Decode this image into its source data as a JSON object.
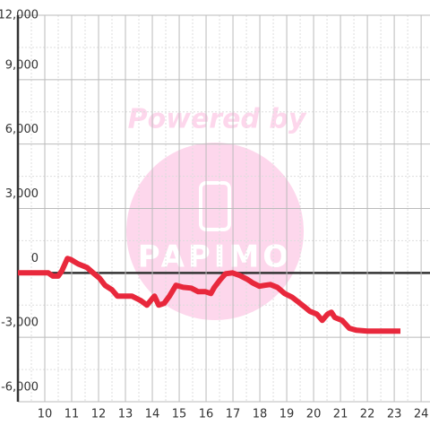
{
  "chart_data": {
    "type": "line",
    "watermark": {
      "line1": "Powered by",
      "line2": "PAPIMO"
    },
    "x": [
      9,
      10.13,
      10.3,
      10.5,
      10.63,
      10.84,
      10.97,
      11.24,
      11.57,
      11.8,
      12.04,
      12.24,
      12.5,
      12.7,
      13.24,
      13.57,
      13.8,
      14.08,
      14.24,
      14.44,
      14.64,
      14.88,
      15.15,
      15.45,
      15.71,
      15.98,
      16.18,
      16.31,
      16.52,
      16.72,
      16.98,
      17.25,
      17.52,
      17.72,
      17.98,
      18.18,
      18.39,
      18.65,
      18.92,
      19.19,
      19.45,
      19.66,
      19.86,
      20.12,
      20.32,
      20.52,
      20.66,
      20.79,
      21.06,
      21.33,
      21.6,
      22.0,
      23.23
    ],
    "series": [
      {
        "color": "#e8283c",
        "values": [
          0,
          0,
          -150,
          -150,
          80,
          670,
          620,
          420,
          250,
          0,
          -250,
          -580,
          -790,
          -1080,
          -1080,
          -1290,
          -1500,
          -1080,
          -1500,
          -1420,
          -1080,
          -580,
          -670,
          -710,
          -875,
          -875,
          -960,
          -670,
          -330,
          -40,
          0,
          -120,
          -290,
          -460,
          -620,
          -580,
          -540,
          -670,
          -960,
          -1125,
          -1375,
          -1580,
          -1790,
          -1920,
          -2210,
          -1920,
          -1830,
          -2080,
          -2210,
          -2580,
          -2670,
          -2710,
          -2710
        ]
      }
    ],
    "xlim": [
      9,
      24.33
    ],
    "xticks": [
      10,
      11,
      12,
      13,
      14,
      15,
      16,
      17,
      18,
      19,
      20,
      21,
      22,
      23,
      24
    ],
    "ylim": [
      -6000,
      12000
    ],
    "yticks": [
      {
        "value": -6000,
        "label": "-6,000"
      },
      {
        "value": -3000,
        "label": "-3,000"
      },
      0,
      {
        "value": 3000,
        "label": "3,000"
      },
      {
        "value": 6000,
        "label": "6,000"
      },
      {
        "value": 9000,
        "label": "9,000"
      },
      {
        "value": 12000,
        "label": "12,000"
      }
    ],
    "grid": true
  }
}
